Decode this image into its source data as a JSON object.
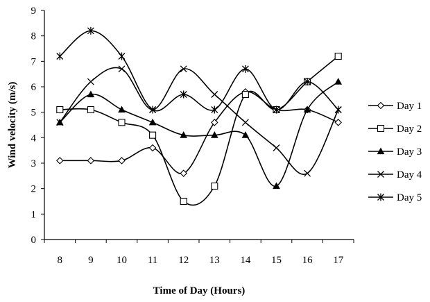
{
  "chart_data": {
    "type": "line",
    "title": "",
    "xlabel": "Time of Day (Hours)",
    "ylabel": "Wind velocity (m/s)",
    "x": [
      8,
      9,
      10,
      11,
      12,
      13,
      14,
      15,
      16,
      17
    ],
    "xlim": [
      7.5,
      17.5
    ],
    "ylim": [
      0,
      9
    ],
    "yticks": [
      0,
      1,
      2,
      3,
      4,
      5,
      6,
      7,
      8,
      9
    ],
    "grid": false,
    "smooth": true,
    "legend_position": "right",
    "line_color": "#000000",
    "series": [
      {
        "name": "Day 1",
        "marker": "diamond",
        "values": [
          3.1,
          3.1,
          3.1,
          3.6,
          2.6,
          4.6,
          5.8,
          5.1,
          5.1,
          4.6
        ]
      },
      {
        "name": "Day 2",
        "marker": "square",
        "values": [
          5.1,
          5.1,
          4.6,
          4.1,
          1.5,
          2.1,
          5.7,
          5.1,
          6.2,
          7.2
        ]
      },
      {
        "name": "Day 3",
        "marker": "triangle",
        "values": [
          4.6,
          5.7,
          5.1,
          4.6,
          4.1,
          4.1,
          4.1,
          2.1,
          5.1,
          6.2
        ]
      },
      {
        "name": "Day 4",
        "marker": "x",
        "values": [
          4.6,
          6.2,
          6.7,
          5.1,
          6.7,
          5.7,
          4.6,
          3.6,
          2.6,
          5.1
        ]
      },
      {
        "name": "Day 5",
        "marker": "star",
        "values": [
          7.2,
          8.2,
          7.2,
          5.1,
          5.7,
          5.1,
          6.7,
          5.1,
          6.2,
          5.1
        ]
      }
    ]
  }
}
